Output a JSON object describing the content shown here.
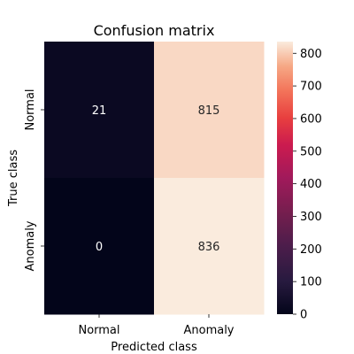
{
  "chart_data": {
    "type": "heatmap",
    "title": "Confusion matrix",
    "xlabel": "Predicted class",
    "ylabel": "True class",
    "x_categories": [
      "Normal",
      "Anomaly"
    ],
    "y_categories": [
      "Normal",
      "Anomaly"
    ],
    "values": [
      [
        21,
        815
      ],
      [
        0,
        836
      ]
    ],
    "colorbar": {
      "min": 0,
      "max": 836,
      "ticks": [
        0,
        100,
        200,
        300,
        400,
        500,
        600,
        700,
        800
      ],
      "colormap": "rocket"
    },
    "grid": false
  }
}
